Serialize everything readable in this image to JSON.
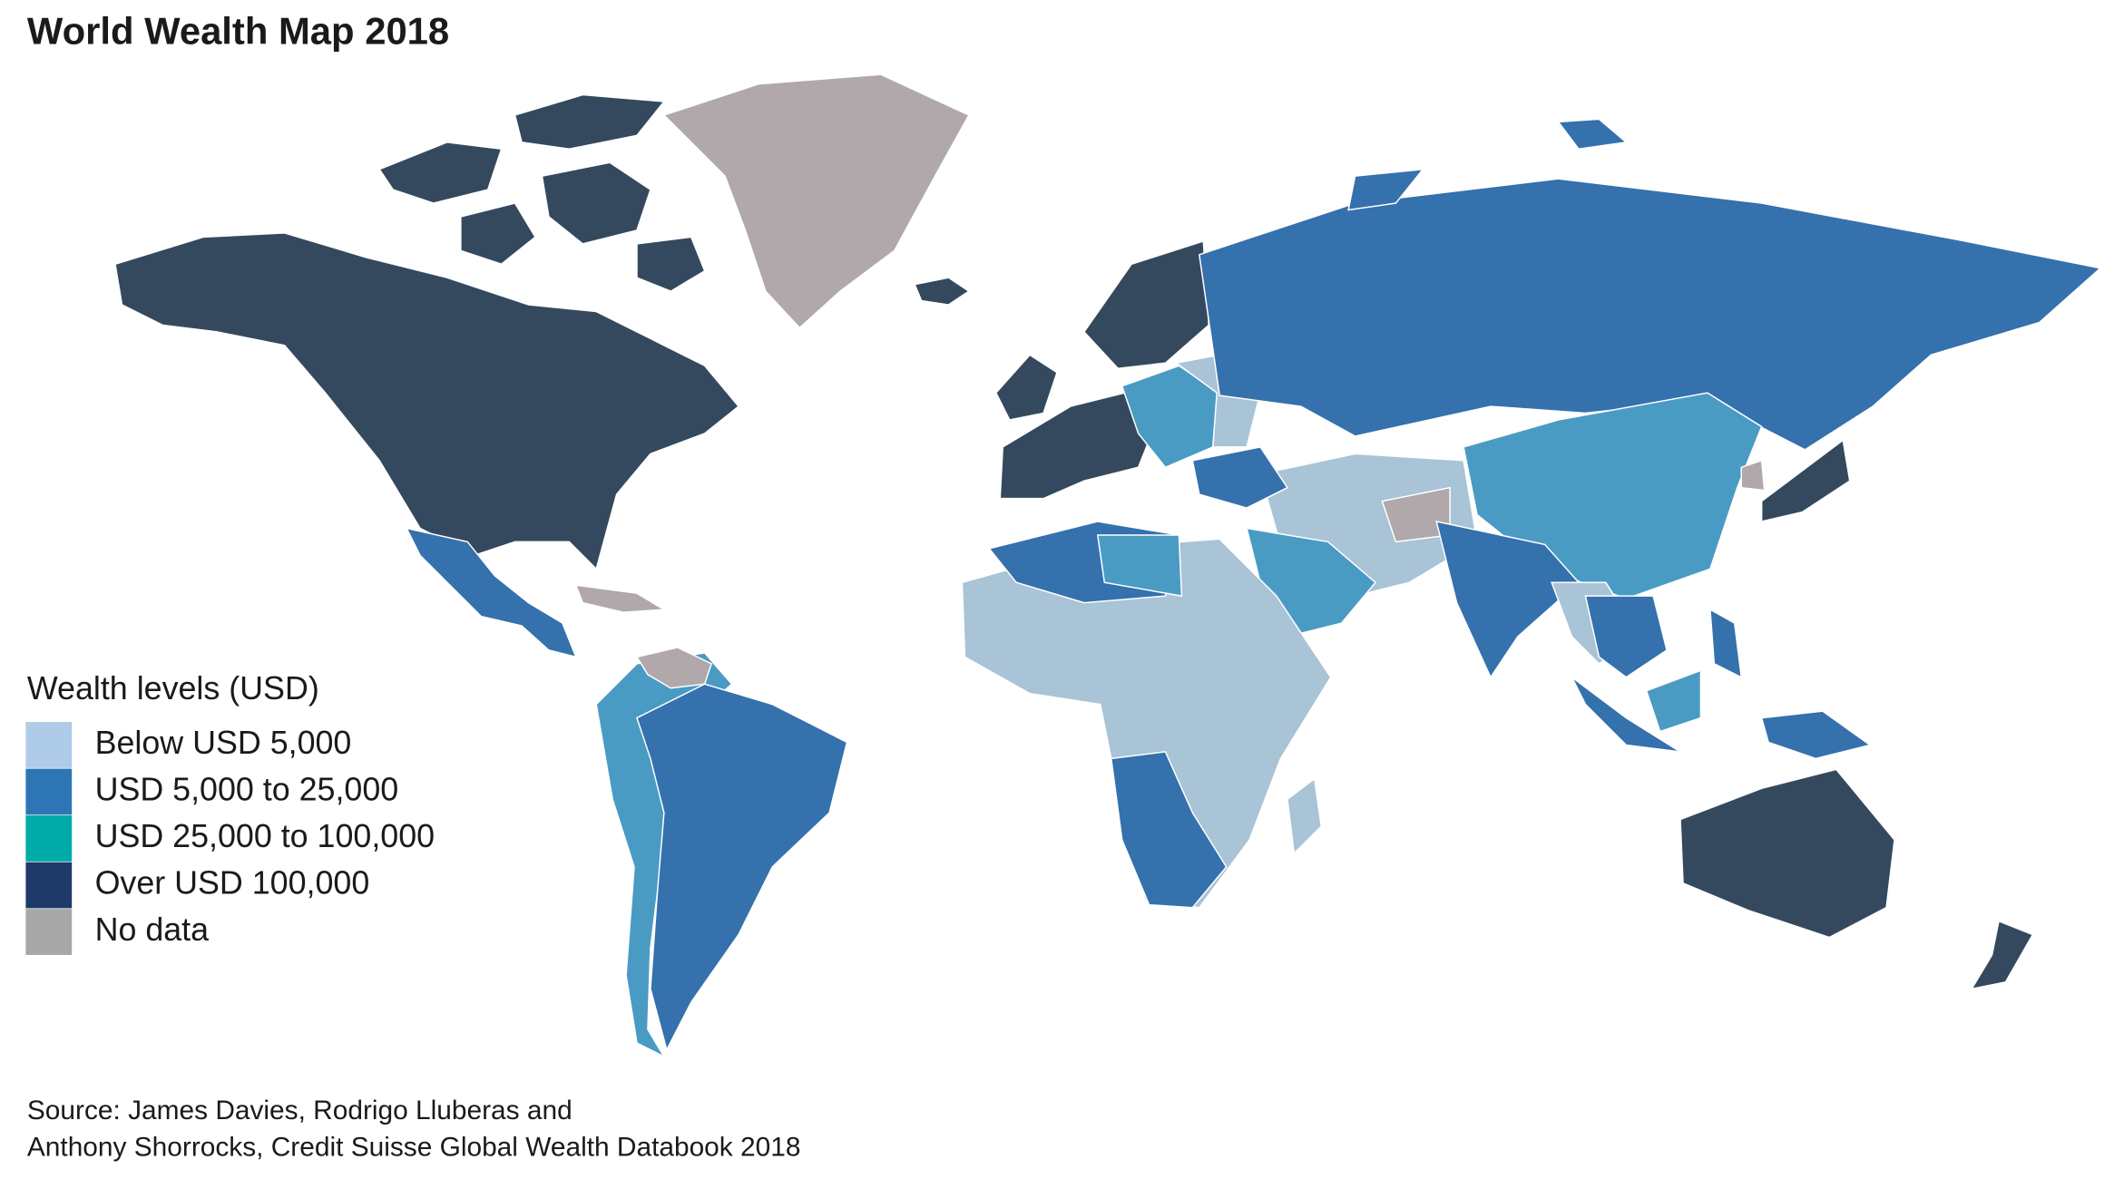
{
  "title": "World Wealth Map 2018",
  "legend": {
    "title": "Wealth levels (USD)",
    "items": [
      {
        "label": "Below USD 5,000",
        "color": "#aecbe8"
      },
      {
        "label": "USD 5,000 to 25,000",
        "color": "#2e75b6"
      },
      {
        "label": "USD 25,000 to 100,000",
        "color": "#00aaa8"
      },
      {
        "label": "Over USD 100,000",
        "color": "#1f3a68"
      },
      {
        "label": "No data",
        "color": "#a8a8a8"
      }
    ]
  },
  "source": [
    "Source: James Davies, Rodrigo Lluberas and",
    "Anthony Shorrocks, Credit Suisse Global Wealth Databook 2018"
  ]
}
